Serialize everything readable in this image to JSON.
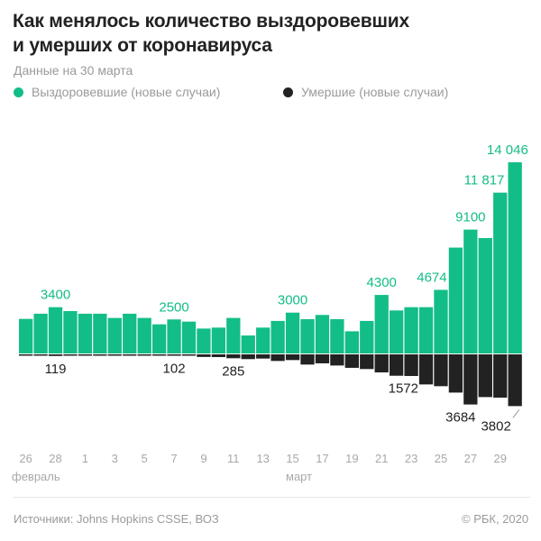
{
  "title_line1": "Как менялось количество выздоровевших",
  "title_line2": "и умерших от коронавируса",
  "subtitle": "Данные на 30 марта",
  "legend": [
    {
      "label": "Выздоровевшие (новые случаи)",
      "color": "#13bd87"
    },
    {
      "label": "Умершие (новые случаи)",
      "color": "#222222"
    }
  ],
  "chart_data": {
    "type": "bar",
    "categories": [
      "26 февраля",
      "27 февраля",
      "28 февраля",
      "29 февраля",
      "1 марта",
      "2 марта",
      "3 марта",
      "4 марта",
      "5 марта",
      "6 марта",
      "7 марта",
      "8 марта",
      "9 марта",
      "10 марта",
      "11 марта",
      "12 марта",
      "13 марта",
      "14 марта",
      "15 марта",
      "16 марта",
      "17 марта",
      "18 марта",
      "19 марта",
      "20 марта",
      "21 марта",
      "22 марта",
      "23 марта",
      "24 марта",
      "25 марта",
      "26 марта",
      "27 марта",
      "28 марта",
      "29 марта",
      "30 марта"
    ],
    "tick_labels": [
      "26",
      "28",
      "1",
      "3",
      "5",
      "7",
      "9",
      "11",
      "13",
      "15",
      "17",
      "19",
      "21",
      "23",
      "25",
      "27",
      "29"
    ],
    "month_labels": [
      "февраль",
      "март"
    ],
    "series": [
      {
        "name": "Выздоровевшие (новые случаи)",
        "color": "#13bd87",
        "values": [
          2540,
          2920,
          3400,
          3115,
          2920,
          2920,
          2610,
          2920,
          2610,
          2140,
          2500,
          2340,
          1830,
          1900,
          2610,
          1320,
          1900,
          2390,
          3000,
          2520,
          2830,
          2520,
          1630,
          2390,
          4300,
          3160,
          3400,
          3400,
          4674,
          7780,
          9100,
          8480,
          11817,
          14046
        ]
      },
      {
        "name": "Умершие (новые случаи)",
        "color": "#222222",
        "values": [
          40,
          55,
          119,
          60,
          65,
          70,
          75,
          65,
          55,
          80,
          102,
          100,
          190,
          200,
          285,
          350,
          310,
          486,
          420,
          750,
          660,
          820,
          990,
          1080,
          1325,
          1572,
          1590,
          2210,
          2340,
          2810,
          3684,
          3140,
          3180,
          3802
        ]
      }
    ],
    "data_labels": {
      "recovered": [
        {
          "index": 2,
          "text": "3400"
        },
        {
          "index": 10,
          "text": "2500"
        },
        {
          "index": 18,
          "text": "3000"
        },
        {
          "index": 24,
          "text": "4300"
        },
        {
          "index": 28,
          "text": "4674"
        },
        {
          "index": 30,
          "text": "9100"
        },
        {
          "index": 32,
          "text": "11 817"
        },
        {
          "index": 33,
          "text": "14 046"
        }
      ],
      "deaths": [
        {
          "index": 2,
          "text": "119"
        },
        {
          "index": 10,
          "text": "102"
        },
        {
          "index": 14,
          "text": "285"
        },
        {
          "index": 25,
          "text": "1572"
        },
        {
          "index": 30,
          "text": "3684"
        },
        {
          "index": 33,
          "text": "3802"
        }
      ]
    },
    "grid": false
  },
  "footer": {
    "sources": "Источники: Johns Hopkins CSSE, ВОЗ",
    "copyright": "© РБК, 2020"
  }
}
